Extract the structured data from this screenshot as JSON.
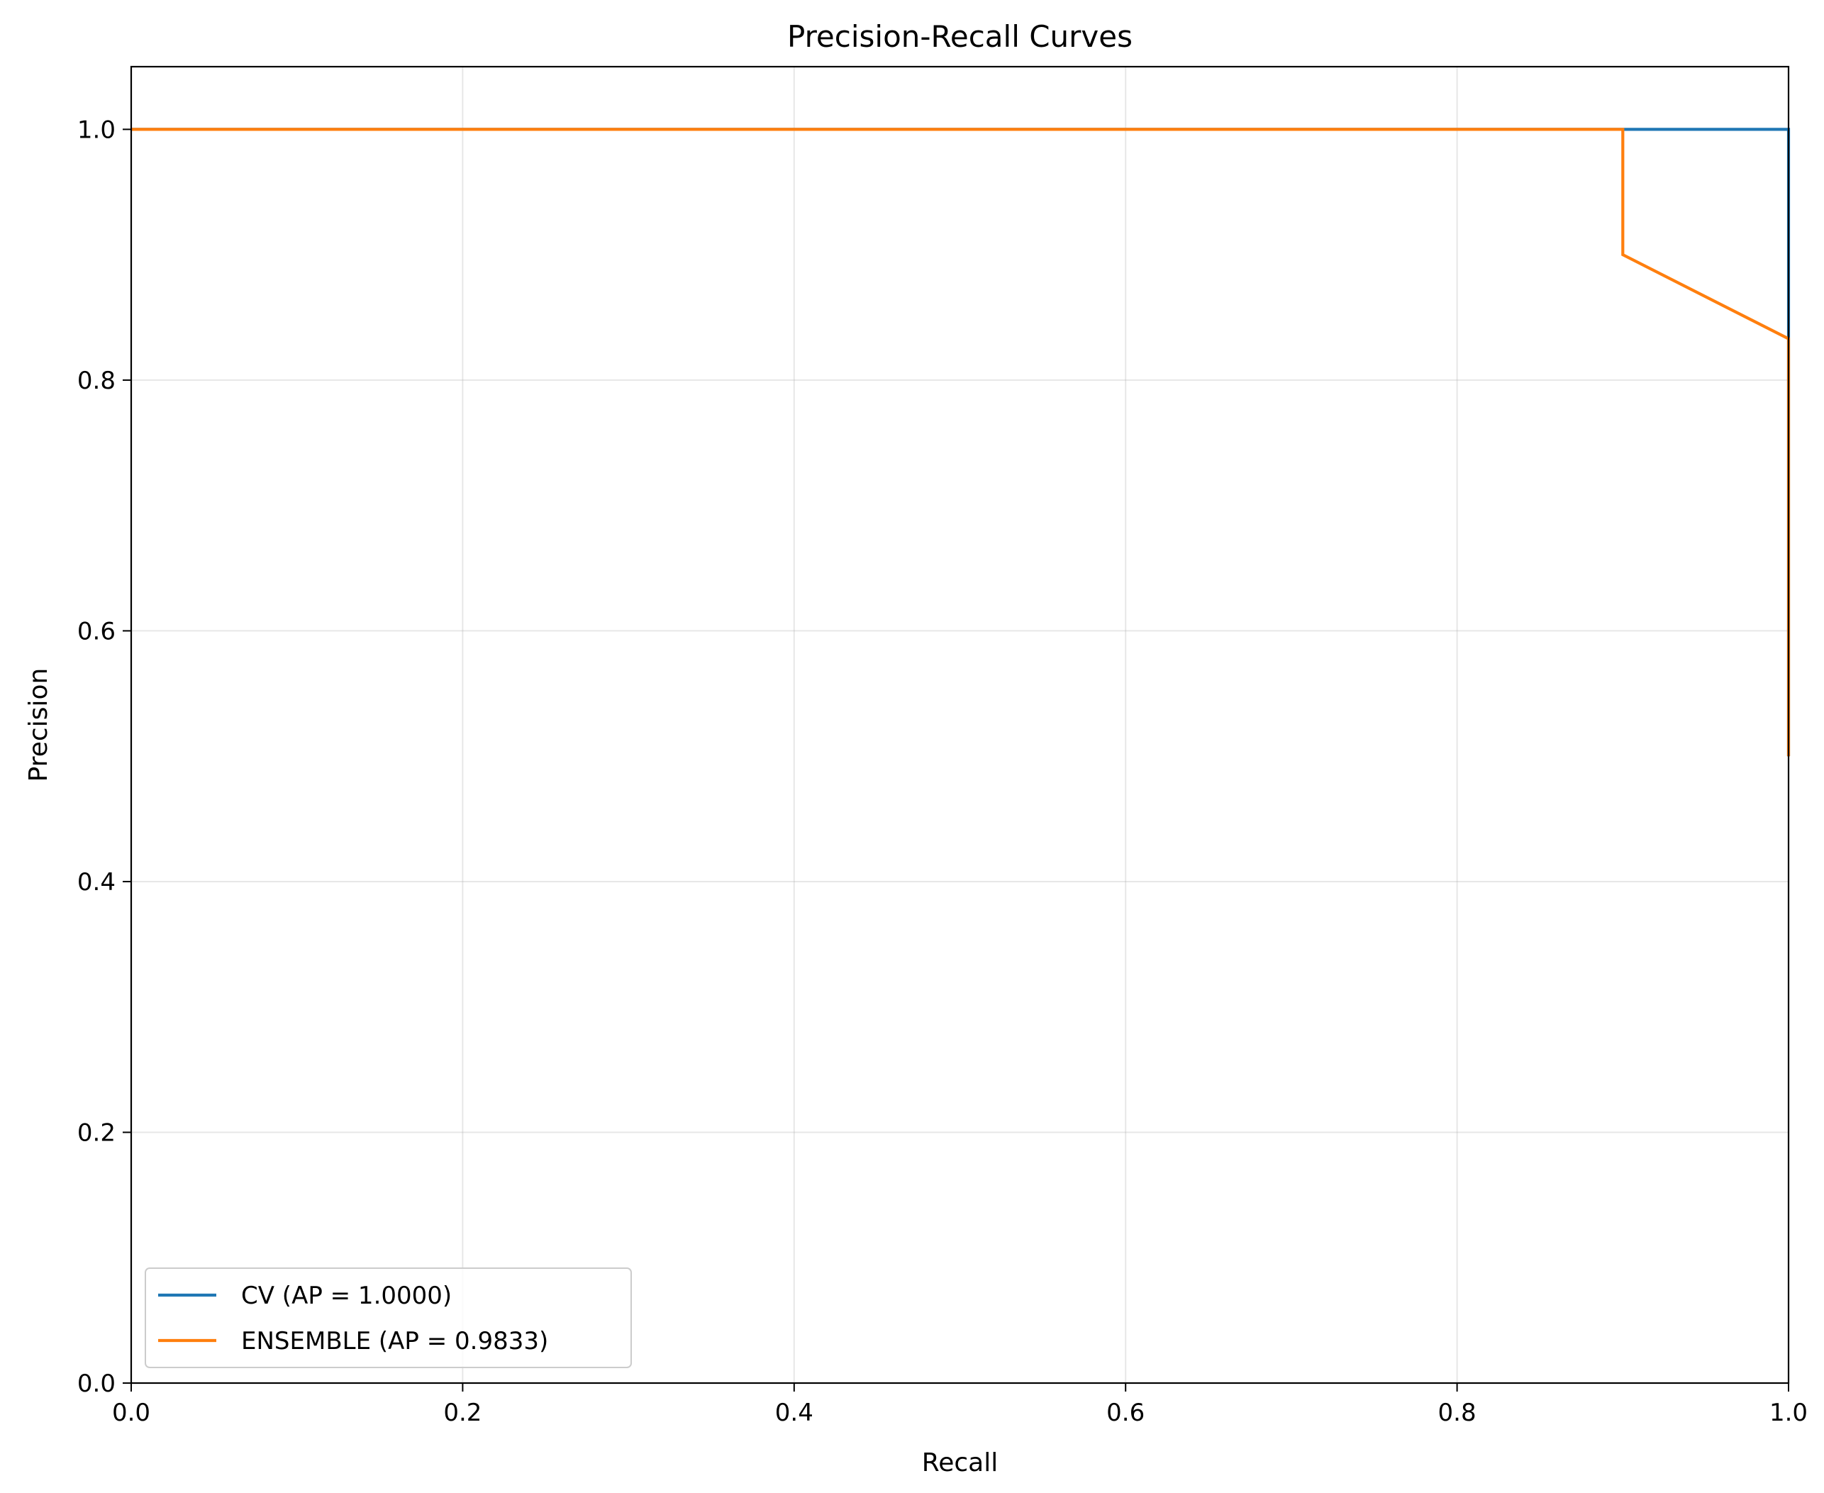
{
  "chart_data": {
    "type": "line",
    "title": "Precision-Recall Curves",
    "xlabel": "Recall",
    "ylabel": "Precision",
    "xlim": [
      0.0,
      1.0
    ],
    "ylim": [
      0.0,
      1.05
    ],
    "xticks": [
      0.0,
      0.2,
      0.4,
      0.6,
      0.8,
      1.0
    ],
    "xtick_labels": [
      "0.0",
      "0.2",
      "0.4",
      "0.6",
      "0.8",
      "1.0"
    ],
    "yticks": [
      0.0,
      0.2,
      0.4,
      0.6,
      0.8,
      1.0
    ],
    "ytick_labels": [
      "0.0",
      "0.2",
      "0.4",
      "0.6",
      "0.8",
      "1.0"
    ],
    "grid": true,
    "legend_position": "lower-left",
    "series": [
      {
        "name": "CV (AP = 1.0000)",
        "color": "#1f77b4",
        "x": [
          0.0,
          0.9,
          1.0,
          1.0,
          1.0
        ],
        "y": [
          1.0,
          1.0,
          1.0,
          0.833,
          0.5
        ]
      },
      {
        "name": "ENSEMBLE (AP = 0.9833)",
        "color": "#ff7f0e",
        "x": [
          0.0,
          0.9,
          0.9,
          1.0,
          1.0
        ],
        "y": [
          1.0,
          1.0,
          0.9,
          0.833,
          0.5
        ]
      }
    ]
  }
}
